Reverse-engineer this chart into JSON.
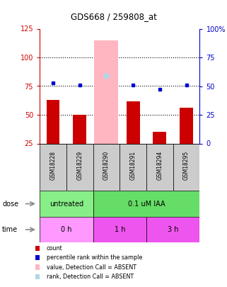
{
  "title": "GDS668 / 259808_at",
  "samples": [
    "GSM18228",
    "GSM18229",
    "GSM18290",
    "GSM18291",
    "GSM18294",
    "GSM18295"
  ],
  "red_bar_values": [
    63,
    50,
    0,
    62,
    35,
    56
  ],
  "blue_dot_values": [
    53,
    51,
    59,
    51,
    47,
    51
  ],
  "pink_bar_values": [
    0,
    0,
    115,
    0,
    0,
    0
  ],
  "light_blue_dot_values": [
    0,
    0,
    59,
    0,
    0,
    0
  ],
  "ylim_left": [
    25,
    125
  ],
  "ylim_right": [
    0,
    100
  ],
  "yticks_left": [
    25,
    50,
    75,
    100,
    125
  ],
  "yticks_right": [
    0,
    25,
    50,
    75,
    100
  ],
  "ytick_labels_right": [
    "0",
    "25",
    "50",
    "75",
    "100%"
  ],
  "hline_values": [
    50,
    75,
    100
  ],
  "red_bar_color": "#CC0000",
  "pink_bar_color": "#FFB6C1",
  "blue_dot_color": "#0000CC",
  "light_blue_dot_color": "#ADD8E6",
  "left_axis_color": "#CC0000",
  "right_axis_color": "#0000CC",
  "sample_label_bg": "#CCCCCC",
  "dose_groups": [
    {
      "label": "untreated",
      "start": 0,
      "end": 2,
      "color": "#88EE88"
    },
    {
      "label": "0.1 uM IAA",
      "start": 2,
      "end": 6,
      "color": "#66DD66"
    }
  ],
  "time_groups": [
    {
      "label": "0 h",
      "start": 0,
      "end": 2,
      "color": "#FF99FF"
    },
    {
      "label": "1 h",
      "start": 2,
      "end": 4,
      "color": "#EE55EE"
    },
    {
      "label": "3 h",
      "start": 4,
      "end": 6,
      "color": "#EE55EE"
    }
  ],
  "legend_items": [
    {
      "label": "count",
      "color": "#CC0000"
    },
    {
      "label": "percentile rank within the sample",
      "color": "#0000CC"
    },
    {
      "label": "value, Detection Call = ABSENT",
      "color": "#FFB6C1"
    },
    {
      "label": "rank, Detection Call = ABSENT",
      "color": "#ADD8E6"
    }
  ]
}
